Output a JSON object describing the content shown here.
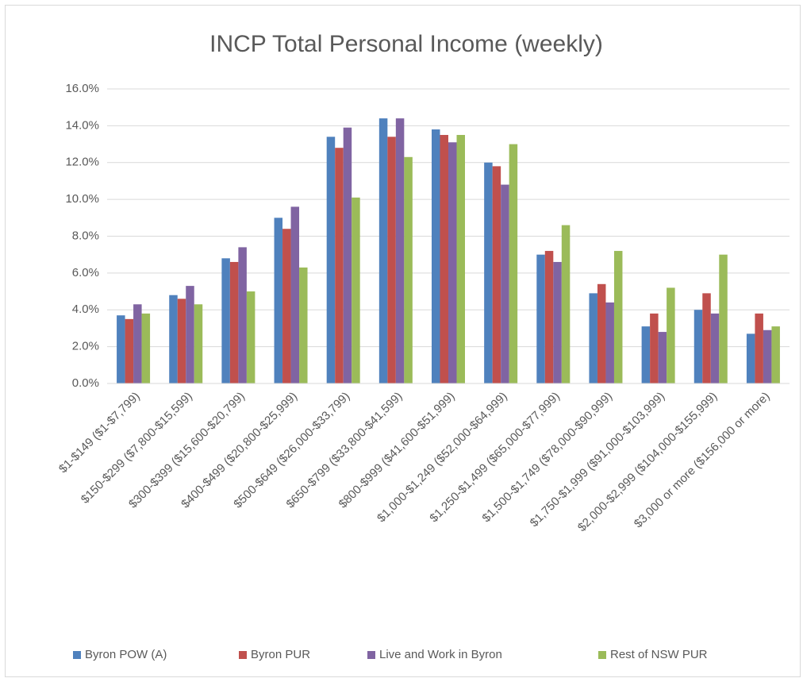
{
  "chart_data": {
    "type": "bar",
    "title": "INCP Total Personal Income (weekly)",
    "categories": [
      "$1-$149 ($1-$7,799)",
      "$150-$299 ($7,800-$15,599)",
      "$300-$399 ($15,600-$20,799)",
      "$400-$499 ($20,800-$25,999)",
      "$500-$649 ($26,000-$33,799)",
      "$650-$799 ($33,800-$41,599)",
      "$800-$999 ($41,600-$51,999)",
      "$1,000-$1,249 ($52,000-$64,999)",
      "$1,250-$1,499 ($65,000-$77,999)",
      "$1,500-$1,749 ($78,000-$90,999)",
      "$1,750-$1,999 ($91,000-$103,999)",
      "$2,000-$2,999 ($104,000-$155,999)",
      "$3,000 or more ($156,000 or more)"
    ],
    "series": [
      {
        "name": "Byron POW (A)",
        "color": "#4f81bd",
        "values": [
          3.7,
          4.8,
          6.8,
          9.0,
          13.4,
          14.4,
          13.8,
          12.0,
          7.0,
          4.9,
          3.1,
          4.0,
          2.7
        ]
      },
      {
        "name": "Byron PUR",
        "color": "#c0504d",
        "values": [
          3.5,
          4.6,
          6.6,
          8.4,
          12.8,
          13.4,
          13.5,
          11.8,
          7.2,
          5.4,
          3.8,
          4.9,
          3.8
        ]
      },
      {
        "name": "Live and Work in Byron",
        "color": "#8064a2",
        "values": [
          4.3,
          5.3,
          7.4,
          9.6,
          13.9,
          14.4,
          13.1,
          10.8,
          6.6,
          4.4,
          2.8,
          3.8,
          2.9
        ]
      },
      {
        "name": "Rest of NSW PUR",
        "color": "#9bbb59",
        "values": [
          3.8,
          4.3,
          5.0,
          6.3,
          10.1,
          12.3,
          13.5,
          13.0,
          8.6,
          7.2,
          5.2,
          7.0,
          3.1
        ]
      }
    ],
    "ylim": [
      0,
      16
    ],
    "yticks": [
      {
        "value": 0,
        "label": "0.0%"
      },
      {
        "value": 2,
        "label": "2.0%"
      },
      {
        "value": 4,
        "label": "4.0%"
      },
      {
        "value": 6,
        "label": "6.0%"
      },
      {
        "value": 8,
        "label": "8.0%"
      },
      {
        "value": 10,
        "label": "10.0%"
      },
      {
        "value": 12,
        "label": "12.0%"
      },
      {
        "value": 14,
        "label": "14.0%"
      },
      {
        "value": 16,
        "label": "16.0%"
      }
    ],
    "grid": true,
    "legend": "bottom"
  }
}
